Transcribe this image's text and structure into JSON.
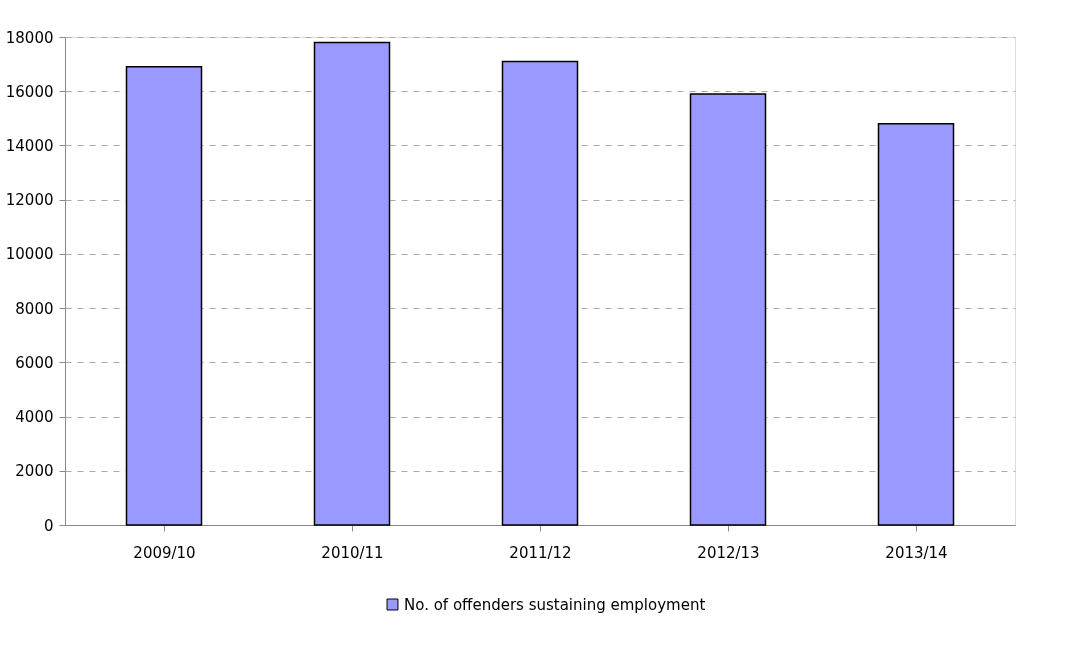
{
  "chart_data": {
    "type": "bar",
    "categories": [
      "2009/10",
      "2010/11",
      "2011/12",
      "2012/13",
      "2013/14"
    ],
    "series": [
      {
        "name": "No. of offenders sustaining employment",
        "color": "#9999ff",
        "values": [
          16900,
          17800,
          17100,
          15900,
          14800
        ]
      }
    ],
    "ylim": [
      0,
      18000
    ],
    "yticks": [
      0,
      2000,
      4000,
      6000,
      8000,
      10000,
      12000,
      14000,
      16000,
      18000
    ],
    "grid": "y",
    "legend": "bottom"
  }
}
